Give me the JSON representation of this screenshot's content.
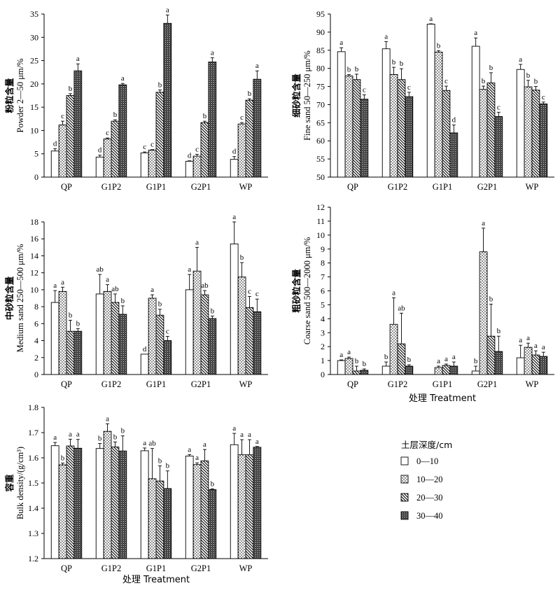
{
  "chart_data": [
    {
      "type": "bar",
      "id": "powder",
      "ylabel_cn": "粉粒含量",
      "ylabel_en": "Powder 2—50 μm/%",
      "ylim": [
        0,
        35
      ],
      "yticks": [
        0,
        5,
        10,
        15,
        20,
        25,
        30,
        35
      ],
      "xlabel": "",
      "categories": [
        "QP",
        "G1P2",
        "G1P1",
        "G2P1",
        "WP"
      ],
      "series": [
        {
          "name": "0—10",
          "values": [
            5.6,
            4.3,
            5.2,
            3.4,
            3.8
          ],
          "errors": [
            0.5,
            0.4,
            0.2,
            0.1,
            0.6
          ],
          "letters": [
            "d",
            "d",
            "c",
            "d",
            "d"
          ]
        },
        {
          "name": "10—20",
          "values": [
            11.2,
            8.2,
            5.8,
            4.5,
            11.4
          ],
          "errors": [
            0.8,
            0.2,
            0.1,
            0.4,
            0.3
          ],
          "letters": [
            "c",
            "c",
            "c",
            "c",
            "c"
          ]
        },
        {
          "name": "20—30",
          "values": [
            17.5,
            12.0,
            18.2,
            11.7,
            16.5
          ],
          "errors": [
            0.4,
            0.3,
            0.5,
            0.3,
            0.3
          ],
          "letters": [
            "b",
            "b",
            "b",
            "b",
            "b"
          ]
        },
        {
          "name": "30—40",
          "values": [
            22.8,
            19.8,
            33.0,
            24.7,
            21.0
          ],
          "errors": [
            1.5,
            0.3,
            1.8,
            0.9,
            1.8
          ],
          "letters": [
            "a",
            "a",
            "a",
            "a",
            "a"
          ]
        }
      ]
    },
    {
      "type": "bar",
      "id": "fine_sand",
      "ylabel_cn": "细砂粒含量",
      "ylabel_en": "Fine sand 50—250 μm/%",
      "ylim": [
        50,
        95
      ],
      "yticks": [
        50,
        55,
        60,
        65,
        70,
        75,
        80,
        85,
        90,
        95
      ],
      "xlabel": "",
      "categories": [
        "QP",
        "G1P2",
        "G1P1",
        "G2P1",
        "WP"
      ],
      "series": [
        {
          "name": "0—10",
          "values": [
            84.6,
            85.4,
            92.2,
            86.1,
            79.7
          ],
          "errors": [
            1.1,
            2.0,
            0.1,
            2.3,
            1.4
          ],
          "letters": [
            "a",
            "a",
            "a",
            "a",
            "a"
          ]
        },
        {
          "name": "10—20",
          "values": [
            77.9,
            78.3,
            84.5,
            74.2,
            74.9
          ],
          "errors": [
            0.4,
            2.0,
            0.4,
            0.9,
            1.8
          ],
          "letters": [
            "b",
            "b",
            "b",
            "b",
            "b"
          ]
        },
        {
          "name": "20—30",
          "values": [
            76.9,
            76.9,
            73.9,
            76.0,
            74.0
          ],
          "errors": [
            1.5,
            3.0,
            1.2,
            2.8,
            1.0
          ],
          "letters": [
            "b",
            "b",
            "c",
            "b",
            "b"
          ]
        },
        {
          "name": "30—40",
          "values": [
            71.5,
            72.2,
            62.2,
            66.7,
            70.2
          ],
          "errors": [
            1.2,
            1.2,
            2.2,
            1.2,
            0.5
          ],
          "letters": [
            "c",
            "c",
            "d",
            "c",
            "c"
          ]
        }
      ]
    },
    {
      "type": "bar",
      "id": "medium_sand",
      "ylabel_cn": "中砂粒含量",
      "ylabel_en": "Medium sand 250—500 μm/%",
      "ylim": [
        0,
        18
      ],
      "yticks": [
        0,
        2,
        4,
        6,
        8,
        10,
        12,
        14,
        16,
        18
      ],
      "xlabel": "",
      "categories": [
        "QP",
        "G1P2",
        "G1P1",
        "G2P1",
        "WP"
      ],
      "series": [
        {
          "name": "0—10",
          "values": [
            8.5,
            9.5,
            2.4,
            10.0,
            15.4
          ],
          "errors": [
            1.4,
            2.3,
            0.0,
            1.8,
            2.6
          ],
          "letters": [
            "a",
            "ab",
            "d",
            "a",
            "a"
          ]
        },
        {
          "name": "10—20",
          "values": [
            9.8,
            9.8,
            9.0,
            12.2,
            11.5
          ],
          "errors": [
            0.5,
            0.8,
            0.4,
            2.8,
            1.7
          ],
          "letters": [
            "a",
            "a",
            "a",
            "a",
            "b"
          ]
        },
        {
          "name": "20—30",
          "values": [
            5.1,
            8.5,
            7.0,
            9.4,
            7.9
          ],
          "errors": [
            1.3,
            1.0,
            0.7,
            0.5,
            1.3
          ],
          "letters": [
            "b",
            "ab",
            "b",
            "ab",
            "c"
          ]
        },
        {
          "name": "30—40",
          "values": [
            5.1,
            7.1,
            4.0,
            6.6,
            7.4
          ],
          "errors": [
            0.3,
            1.0,
            0.5,
            0.3,
            1.5
          ],
          "letters": [
            "b",
            "b",
            "c",
            "b",
            "c"
          ]
        }
      ]
    },
    {
      "type": "bar",
      "id": "coarse_sand",
      "ylabel_cn": "粗砂粒含量",
      "ylabel_en": "Coarse sand 500—2000 μm/%",
      "ylim": [
        0,
        12
      ],
      "yticks": [
        0,
        1,
        2,
        3,
        4,
        5,
        6,
        7,
        8,
        9,
        10,
        11,
        12
      ],
      "xlabel": "处理 Treatment",
      "categories": [
        "QP",
        "G1P2",
        "G1P1",
        "G2P1",
        "WP"
      ],
      "series": [
        {
          "name": "0—10",
          "values": [
            1.0,
            0.6,
            0.0,
            0.25,
            1.2
          ],
          "errors": [
            0.05,
            0.3,
            0.0,
            0.35,
            0.9
          ],
          "letters": [
            "a",
            "b",
            "",
            "b",
            "a"
          ]
        },
        {
          "name": "10—20",
          "values": [
            1.15,
            3.6,
            0.5,
            8.8,
            1.95
          ],
          "errors": [
            0.1,
            1.9,
            0.1,
            1.7,
            0.3
          ],
          "letters": [
            "a",
            "a",
            "a",
            "a",
            "a"
          ]
        },
        {
          "name": "20—30",
          "values": [
            0.25,
            2.2,
            0.65,
            2.75,
            1.4
          ],
          "errors": [
            0.35,
            2.2,
            0.1,
            2.3,
            0.3
          ],
          "letters": [
            "b",
            "ab",
            "a",
            "b",
            "a"
          ]
        },
        {
          "name": "30—40",
          "values": [
            0.3,
            0.6,
            0.6,
            1.65,
            1.3
          ],
          "errors": [
            0.1,
            0.1,
            0.3,
            1.1,
            0.3
          ],
          "letters": [
            "b",
            "b",
            "a",
            "b",
            "a"
          ]
        }
      ]
    },
    {
      "type": "bar",
      "id": "bulk_density",
      "ylabel_cn": "容重",
      "ylabel_en": "Bulk density/(g/cm³)",
      "ylim": [
        1.2,
        1.8
      ],
      "yticks": [
        "1.2",
        "1.3",
        "1.4",
        "1.5",
        "1.6",
        "1.7",
        "1.8"
      ],
      "xlabel": "处理 Treatment",
      "categories": [
        "QP",
        "G1P2",
        "G1P1",
        "G2P1",
        "WP"
      ],
      "series": [
        {
          "name": "0—10",
          "values": [
            1.648,
            1.637,
            1.628,
            1.607,
            1.652
          ],
          "errors": [
            0.013,
            0.02,
            0.011,
            0.006,
            0.045
          ],
          "letters": [
            "a",
            "b",
            "a",
            "a",
            "a"
          ]
        },
        {
          "name": "10—20",
          "values": [
            1.572,
            1.705,
            1.517,
            1.573,
            1.612
          ],
          "errors": [
            0.007,
            0.03,
            0.12,
            0.007,
            0.06
          ],
          "letters": [
            "b",
            "a",
            "ab",
            "a",
            "a"
          ]
        },
        {
          "name": "20—30",
          "values": [
            1.647,
            1.643,
            1.508,
            1.588,
            1.612
          ],
          "errors": [
            0.027,
            0.02,
            0.06,
            0.045,
            0.06
          ],
          "letters": [
            "a",
            "b",
            "b",
            "a",
            "a"
          ]
        },
        {
          "name": "30—40",
          "values": [
            1.638,
            1.627,
            1.478,
            1.474,
            1.642
          ],
          "errors": [
            0.035,
            0.06,
            0.07,
            0.003,
            0.003
          ],
          "letters": [
            "a",
            "b",
            "b",
            "b",
            "a"
          ]
        }
      ]
    }
  ],
  "legend": {
    "title": "土层深度/cm",
    "items": [
      "0—10",
      "10—20",
      "20—30",
      "30—40"
    ]
  },
  "colors": {
    "axis": "#000000",
    "bar_stroke": "#000000",
    "background": "#ffffff"
  }
}
